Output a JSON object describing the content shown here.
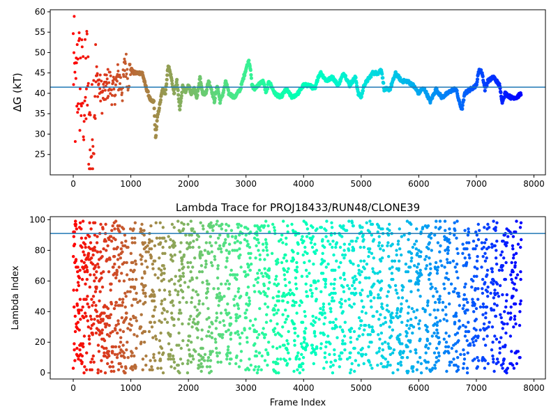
{
  "chart_data": [
    {
      "type": "scatter",
      "title": "",
      "xlabel": "",
      "ylabel": "ΔG (kT)",
      "xlim": [
        -400,
        8200
      ],
      "ylim": [
        20,
        60.5
      ],
      "xticks": [
        0,
        1000,
        2000,
        3000,
        4000,
        5000,
        6000,
        7000,
        8000
      ],
      "yticks": [
        25,
        30,
        35,
        40,
        45,
        50,
        55,
        60
      ],
      "hline": 41.5,
      "hline_color": "#1f77b4",
      "colormap": "rainbow",
      "color_by": "frame index (late frames purple, early frames red)",
      "x_extent": [
        0,
        7780
      ],
      "series": [
        {
          "x": [
            0,
            40,
            80,
            120,
            160,
            200,
            240,
            280,
            320,
            360,
            400,
            450,
            500,
            560,
            620,
            700,
            780,
            860,
            900,
            950,
            1000,
            1050,
            1100,
            1150,
            1200,
            1250,
            1300,
            1350,
            1400,
            1430,
            1460,
            1500,
            1550,
            1600,
            1650,
            1700,
            1750,
            1800,
            1850,
            1900,
            1950,
            2000,
            2050,
            2100,
            2150,
            2200,
            2250,
            2300,
            2350,
            2400,
            2450,
            2500,
            2550,
            2600,
            2650,
            2700,
            2800,
            2900,
            3000,
            3050,
            3080,
            3100,
            3150,
            3200,
            3300,
            3350,
            3400,
            3500,
            3600,
            3700,
            3800,
            3900,
            4000,
            4100,
            4200,
            4250,
            4300,
            4400,
            4500,
            4600,
            4700,
            4800,
            4900,
            4950,
            5000,
            5050,
            5100,
            5200,
            5300,
            5350,
            5400,
            5500,
            5600,
            5700,
            5800,
            5900,
            6000,
            6050,
            6100,
            6200,
            6300,
            6400,
            6500,
            6600,
            6650,
            6700,
            6750,
            6800,
            6900,
            7000,
            7050,
            7100,
            7150,
            7200,
            7300,
            7400,
            7450,
            7500,
            7600,
            7700,
            7780
          ],
          "y": [
            50,
            36,
            46,
            42,
            40,
            38,
            45,
            30,
            27,
            40,
            44,
            42,
            39,
            41,
            43,
            40,
            44,
            41,
            48,
            44,
            46,
            45,
            45,
            45,
            45,
            42,
            40,
            38,
            38,
            29,
            34,
            37,
            41,
            40,
            47,
            44,
            40,
            43,
            36,
            42,
            40,
            42,
            40,
            41,
            39,
            44,
            40,
            40,
            43,
            41,
            38,
            42,
            38,
            40,
            43,
            40,
            39,
            41,
            46,
            48,
            46,
            42,
            41,
            42,
            43,
            40,
            43,
            40,
            39,
            41,
            39,
            40,
            42,
            42,
            41,
            44,
            45,
            43,
            44,
            42,
            45,
            42,
            44,
            40,
            39,
            42,
            43,
            45,
            45,
            46,
            41,
            41,
            45,
            43,
            43,
            42,
            40,
            41,
            41,
            38,
            41,
            39,
            40,
            41,
            41,
            38,
            36,
            40,
            41,
            42,
            46,
            45,
            41,
            43,
            44,
            42,
            38,
            40,
            39,
            39,
            40
          ]
        }
      ]
    },
    {
      "type": "scatter",
      "title": "Lambda Trace for PROJ18433/RUN48/CLONE39",
      "xlabel": "Frame Index",
      "ylabel": "Lambda Index",
      "xlim": [
        -400,
        8200
      ],
      "ylim": [
        -4,
        102
      ],
      "xticks": [
        0,
        1000,
        2000,
        3000,
        4000,
        5000,
        6000,
        7000,
        8000
      ],
      "yticks": [
        0,
        20,
        40,
        60,
        80,
        100
      ],
      "hline": 91,
      "hline_color": "#1f77b4",
      "colormap": "rainbow",
      "color_by": "frame index (late frames purple, early frames red)",
      "x_extent": [
        0,
        7780
      ],
      "y_extent": [
        0,
        99
      ]
    }
  ]
}
